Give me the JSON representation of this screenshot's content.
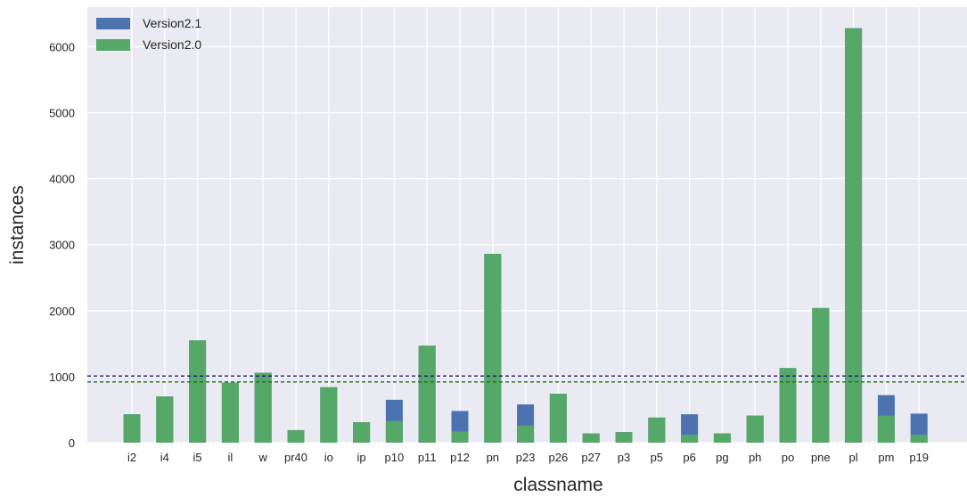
{
  "chart_data": {
    "type": "bar",
    "xlabel": "classname",
    "ylabel": "instances",
    "categories": [
      "i2",
      "i4",
      "i5",
      "il",
      "w",
      "pr40",
      "io",
      "ip",
      "p10",
      "p11",
      "p12",
      "pn",
      "p23",
      "p26",
      "p27",
      "p3",
      "p5",
      "p6",
      "pg",
      "ph",
      "po",
      "pne",
      "pl",
      "pm",
      "p19"
    ],
    "series": [
      {
        "name": "Version2.1",
        "color": "#4c72b0",
        "values": [
          430,
          700,
          1550,
          910,
          1060,
          190,
          840,
          310,
          650,
          1470,
          480,
          2860,
          580,
          740,
          140,
          160,
          380,
          430,
          140,
          410,
          1130,
          2040,
          6280,
          720,
          440
        ]
      },
      {
        "name": "Version2.0",
        "color": "#55a868",
        "values": [
          430,
          700,
          1550,
          910,
          1060,
          190,
          840,
          310,
          330,
          1470,
          170,
          2860,
          260,
          740,
          140,
          160,
          380,
          120,
          140,
          410,
          1130,
          2040,
          6280,
          410,
          120
        ]
      }
    ],
    "reference_lines": [
      {
        "value": 1010,
        "color": "#1b1b7a",
        "style": "dashed"
      },
      {
        "value": 920,
        "color": "#1e6b1e",
        "style": "dashed"
      }
    ],
    "ylim": [
      0,
      6600
    ],
    "yticks": [
      0,
      1000,
      2000,
      3000,
      4000,
      5000,
      6000
    ],
    "grid": true,
    "legend_position": "top-left"
  }
}
